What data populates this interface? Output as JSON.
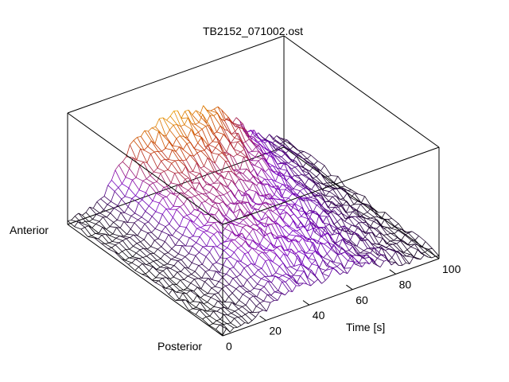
{
  "chart_data": {
    "type": "surface",
    "title": "TB2152_071002.ost",
    "x_axis": {
      "label": "Time [s]",
      "range": [
        0,
        100
      ],
      "ticks": [
        0,
        20,
        40,
        60,
        80,
        100
      ]
    },
    "y_axis": {
      "start_label": "Anterior",
      "end_label": "Posterior"
    },
    "z_axis": {
      "tick_labels_shown": false,
      "range": [
        0,
        1
      ]
    },
    "surface": {
      "time_samples": 60,
      "position_samples": 24,
      "profile_in_time": "rises from about 10 s, plateau from about 30 s to 65 s, declines toward 100 s",
      "profile_in_position": "highest near the anterior edge, decreasing toward posterior",
      "colormap": [
        "#000000",
        "#7a00c8",
        "#c23600",
        "#ffd000"
      ],
      "mesh": "wireframe"
    },
    "grid": false,
    "legend": "none"
  }
}
